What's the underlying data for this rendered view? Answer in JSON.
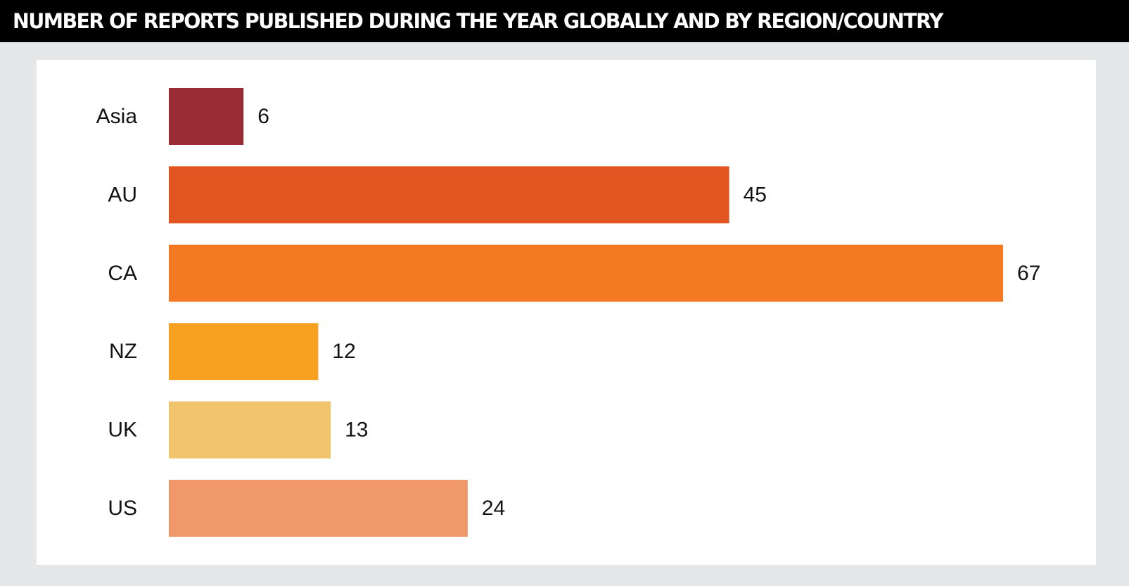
{
  "header": {
    "title": "NUMBER OF REPORTS PUBLISHED DURING THE YEAR GLOBALLY AND BY REGION/COUNTRY"
  },
  "colors": {
    "title_bar": "#000000",
    "background": "#e6e7e8",
    "panel": "#ffffff"
  },
  "chart_data": {
    "type": "bar",
    "orientation": "horizontal",
    "title": "NUMBER OF REPORTS PUBLISHED DURING THE YEAR GLOBALLY AND BY REGION/COUNTRY",
    "categories": [
      "Asia",
      "AU",
      "CA",
      "NZ",
      "UK",
      "US"
    ],
    "values": [
      6,
      45,
      67,
      12,
      13,
      24
    ],
    "value_labels": [
      "6",
      "45",
      "67",
      "12",
      "13",
      "24"
    ],
    "colors": [
      "#9a2c35",
      "#e35520",
      "#f47922",
      "#f8a120",
      "#f0c36d",
      "#f0986a"
    ],
    "xlim": [
      0,
      67
    ],
    "grid": false,
    "legend": "none"
  }
}
